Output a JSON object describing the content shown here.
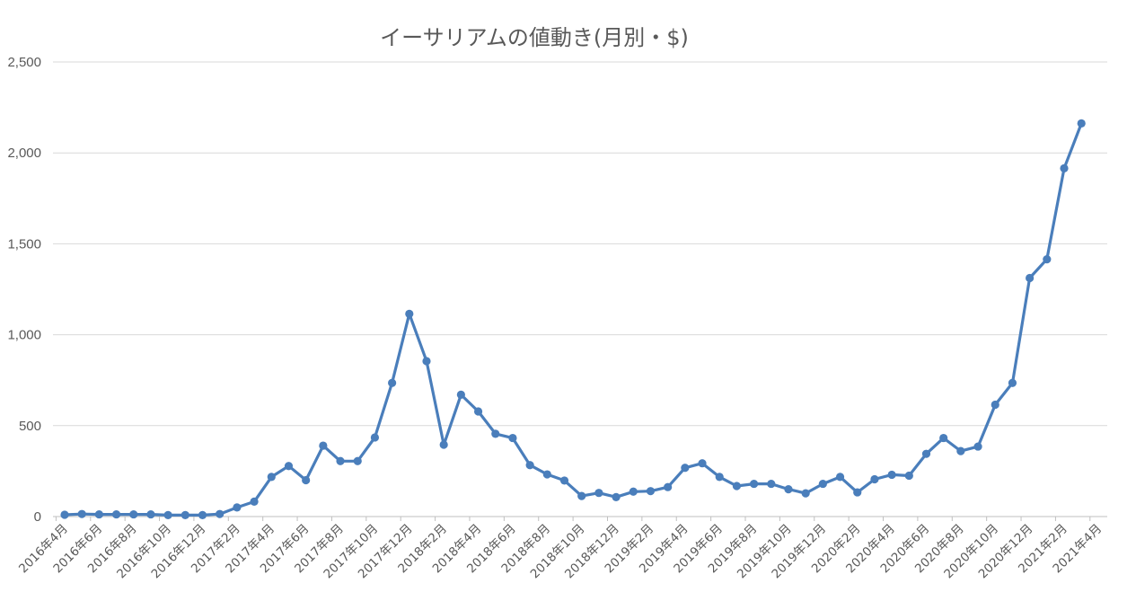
{
  "chart_data": {
    "type": "line",
    "title": "イーサリアムの値動き(月別・$)",
    "xlabel": "",
    "ylabel": "",
    "ylim": [
      0,
      2500
    ],
    "y_ticks": [
      "0",
      "500",
      "1,000",
      "1,500",
      "2,000",
      "2,500"
    ],
    "y_tick_values": [
      0,
      500,
      1000,
      1500,
      2000,
      2500
    ],
    "grid": true,
    "legend": "none",
    "x_tick_labels": [
      "2016年4月",
      "2016年6月",
      "2016年8月",
      "2016年10月",
      "2016年12月",
      "2017年2月",
      "2017年4月",
      "2017年6月",
      "2017年8月",
      "2017年10月",
      "2017年12月",
      "2018年2月",
      "2018年4月",
      "2018年6月",
      "2018年8月",
      "2018年10月",
      "2018年12月",
      "2019年2月",
      "2019年4月",
      "2019年6月",
      "2019年8月",
      "2019年10月",
      "2019年12月",
      "2020年2月",
      "2020年4月",
      "2020年6月",
      "2020年8月",
      "2020年10月",
      "2020年12月",
      "2021年2月",
      "2021年4月"
    ],
    "series": [
      {
        "color": "#4A7EBB",
        "values": [
          10,
          14,
          12,
          12,
          12,
          12,
          8,
          8,
          8,
          14,
          50,
          82,
          218,
          278,
          200,
          390,
          305,
          305,
          435,
          735,
          1115,
          855,
          395,
          670,
          578,
          455,
          432,
          283,
          232,
          198,
          113,
          130,
          107,
          137,
          140,
          162,
          268,
          293,
          218,
          168,
          180,
          180,
          150,
          128,
          180,
          218,
          133,
          205,
          230,
          225,
          345,
          432,
          360,
          385,
          615,
          735,
          1312,
          1415,
          1915,
          2162
        ]
      }
    ]
  },
  "colors": {
    "line": "#4A7EBB",
    "grid": "#D9D9D9",
    "text": "#595959"
  }
}
